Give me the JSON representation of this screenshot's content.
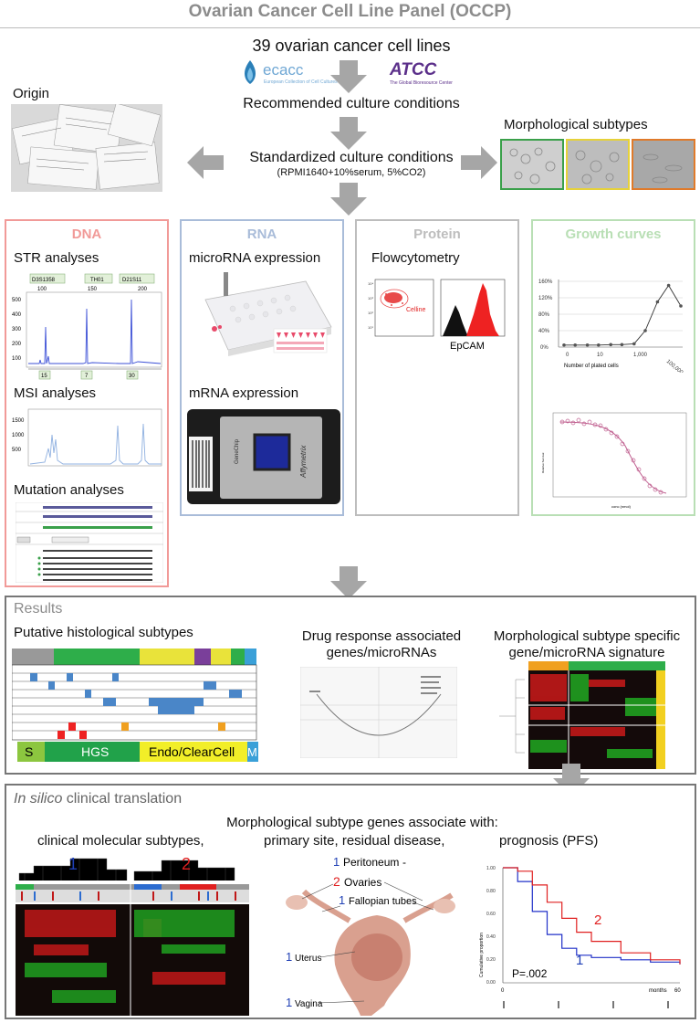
{
  "title": "Ovarian Cancer Cell Line Panel (OCCP)",
  "top": {
    "cell_lines": "39 ovarian cancer cell lines",
    "ecacc_logo": "ecacc",
    "ecacc_sub": "European Collection of Cell Cultures",
    "atcc_logo": "ATCC",
    "atcc_sub": "The Global Bioresource Center",
    "recommended": "Recommended culture conditions",
    "standardized": "Standardized culture conditions",
    "standardized_detail": "(RPMI1640+10%serum,  5%CO2)",
    "origin": "Origin",
    "morphological": "Morphological subtypes"
  },
  "panels": {
    "dna": {
      "title": "DNA",
      "str": "STR analyses",
      "str_markers": [
        "D3S1358",
        "TH01",
        "D21S11"
      ],
      "str_ticks": [
        "100",
        "150",
        "200"
      ],
      "str_yticks": [
        "500",
        "400",
        "300",
        "200",
        "100"
      ],
      "str_bottom": [
        "15",
        "7",
        "30"
      ],
      "msi": "MSI analyses",
      "msi_yticks": [
        "1500",
        "1000",
        "500"
      ],
      "mutation": "Mutation analyses"
    },
    "rna": {
      "title": "RNA",
      "mirna": "microRNA expression",
      "mrna": "mRNA expression",
      "chip_label": "GeneChip",
      "affy_label": "Affymetrix"
    },
    "protein": {
      "title": "Protein",
      "flow": "Flowcytometry",
      "celline": "Celline",
      "epcam": "EpCAM"
    },
    "growth": {
      "title": "Growth curves",
      "yticks": [
        "160%",
        "120%",
        "80%",
        "40%",
        "0%"
      ],
      "xticks": [
        "0",
        "10",
        "1,000",
        "100,000"
      ],
      "xlabel": "Number of plated cells",
      "ylabel2": "Relative Survival",
      "xlabel2": "conc (nmol)"
    }
  },
  "results": {
    "heading": "Results",
    "putative": "Putative histological subtypes",
    "subtypes": [
      "S",
      "HGS",
      "Endo/ClearCell",
      "M"
    ],
    "drug1": "Drug response associated",
    "drug2": "genes/microRNAs",
    "morph1": "Morphological subtype specific",
    "morph2": "gene/microRNA signature"
  },
  "insilico": {
    "heading_italic": "In silico",
    "heading_rest": " clinical translation",
    "assoc": "Morphological subtype genes associate with:",
    "clinical": "clinical molecular subtypes,",
    "primary": "primary site, residual disease,",
    "prognosis": "prognosis (PFS)",
    "cluster1": "1",
    "cluster2": "2",
    "anatomy": {
      "peritoneum_num": "1",
      "peritoneum": "Peritoneum",
      "ovaries_num": "2",
      "ovaries": "Ovaries",
      "fallopian_num": "1",
      "fallopian": "Fallopian tubes",
      "uterus_num": "1",
      "uterus": "Uterus",
      "vagina_num": "1",
      "vagina": "Vagina"
    },
    "km": {
      "pvalue": "P=.002",
      "ylabel": "Cumulative proportion",
      "xlabel": "months",
      "yticks": [
        "1.00",
        "0.80",
        "0.60",
        "0.40",
        "0.20",
        "0.00"
      ],
      "xticks": [
        "0",
        "60"
      ],
      "curve1_label": "1",
      "curve2_label": "2"
    }
  },
  "colors": {
    "dna": "#f19a98",
    "rna": "#a9bcd9",
    "protein": "#bdbdbd",
    "growth": "#b9dfb5",
    "arrow": "#a6a6a6",
    "blue_num": "#1f3fb5",
    "red_num": "#e02020"
  },
  "chart_data": [
    {
      "type": "line",
      "title": "",
      "xlabel": "Number of plated cells",
      "ylabel": "",
      "x_scale": "log",
      "x": [
        1,
        3,
        10,
        30,
        100,
        300,
        1000,
        3000,
        10000,
        30000,
        100000
      ],
      "y": [
        5,
        5,
        5,
        5,
        6,
        6,
        8,
        40,
        110,
        150,
        100
      ],
      "ylim": [
        0,
        160
      ]
    },
    {
      "type": "line",
      "title": "",
      "xlabel": "months",
      "ylabel": "Cumulative proportion",
      "series": [
        {
          "name": "1",
          "x": [
            0,
            5,
            10,
            15,
            20,
            25,
            30,
            40,
            50,
            60
          ],
          "y": [
            1.0,
            0.88,
            0.62,
            0.42,
            0.3,
            0.24,
            0.22,
            0.2,
            0.18,
            0.16
          ]
        },
        {
          "name": "2",
          "x": [
            0,
            5,
            10,
            15,
            20,
            25,
            30,
            40,
            50,
            60
          ],
          "y": [
            1.0,
            0.97,
            0.85,
            0.7,
            0.56,
            0.44,
            0.36,
            0.26,
            0.2,
            0.16
          ]
        }
      ],
      "ylim": [
        0,
        1.0
      ],
      "xlim": [
        0,
        60
      ]
    }
  ]
}
